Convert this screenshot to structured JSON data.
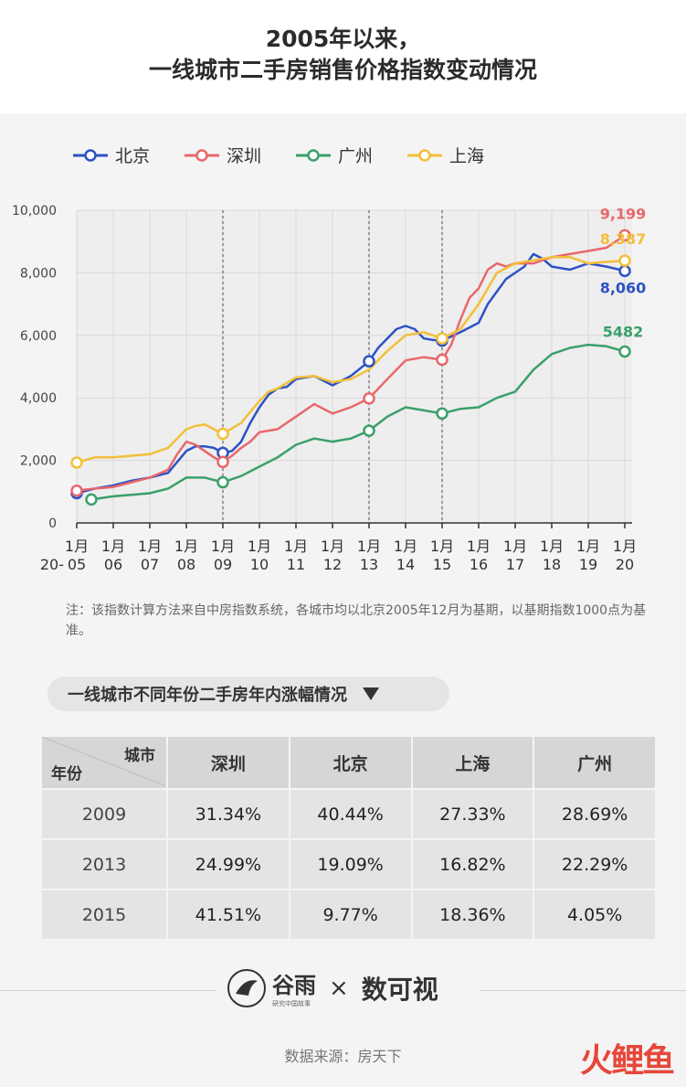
{
  "title_line1": "2005年以来，",
  "title_line2": "一线城市二手房销售价格指数变动情况",
  "legend": [
    {
      "name": "北京",
      "color": "#2d52c4"
    },
    {
      "name": "深圳",
      "color": "#e9676a"
    },
    {
      "name": "广州",
      "color": "#3aa06a"
    },
    {
      "name": "上海",
      "color": "#f3bf3a"
    }
  ],
  "note": "注：该指数计算方法来自中房指数系统，各城市均以北京2005年12月为基期，以基期指数1000点为基准。",
  "section_title": "一线城市不同年份二手房年内涨幅情况",
  "table": {
    "corner_top": "城市",
    "corner_bottom": "年份",
    "headers": [
      "深圳",
      "北京",
      "上海",
      "广州"
    ],
    "rows": [
      {
        "year": "2009",
        "values": [
          "31.34%",
          "40.44%",
          "27.33%",
          "28.69%"
        ]
      },
      {
        "year": "2013",
        "values": [
          "24.99%",
          "19.09%",
          "16.82%",
          "22.29%"
        ]
      },
      {
        "year": "2015",
        "values": [
          "41.51%",
          "9.77%",
          "18.36%",
          "4.05%"
        ]
      }
    ]
  },
  "logo_brand": "谷雨",
  "logo_brand_sub": "研究中国故事",
  "logo_times": "×",
  "logo_partner": "数可视",
  "source": "数据来源：房天下",
  "corner_logo": "火鲤鱼",
  "chart_data": {
    "type": "line",
    "ylim": [
      0,
      10000
    ],
    "yticks": [
      "0",
      "2,000",
      "4,000",
      "6,000",
      "8,000",
      "10,000"
    ],
    "ytick_values": [
      0,
      2000,
      4000,
      6000,
      8000,
      10000
    ],
    "xlim": [
      2005,
      2020.2
    ],
    "x_prefix": "20-",
    "xticks": [
      {
        "x": 2005,
        "top": "1月",
        "bottom": "05"
      },
      {
        "x": 2006,
        "top": "1月",
        "bottom": "06"
      },
      {
        "x": 2007,
        "top": "1月",
        "bottom": "07"
      },
      {
        "x": 2008,
        "top": "1月",
        "bottom": "08"
      },
      {
        "x": 2009,
        "top": "1月",
        "bottom": "09"
      },
      {
        "x": 2010,
        "top": "1月",
        "bottom": "10"
      },
      {
        "x": 2011,
        "top": "1月",
        "bottom": "11"
      },
      {
        "x": 2012,
        "top": "1月",
        "bottom": "12"
      },
      {
        "x": 2013,
        "top": "1月",
        "bottom": "13"
      },
      {
        "x": 2014,
        "top": "1月",
        "bottom": "14"
      },
      {
        "x": 2015,
        "top": "1月",
        "bottom": "15"
      },
      {
        "x": 2016,
        "top": "1月",
        "bottom": "16"
      },
      {
        "x": 2017,
        "top": "1月",
        "bottom": "17"
      },
      {
        "x": 2018,
        "top": "1月",
        "bottom": "18"
      },
      {
        "x": 2019,
        "top": "1月",
        "bottom": "19"
      },
      {
        "x": 2020,
        "top": "1月",
        "bottom": "20"
      }
    ],
    "vlines": [
      2009,
      2013,
      2015
    ],
    "grid": true,
    "series": [
      {
        "name": "北京",
        "color": "#2d52c4",
        "x": [
          2005,
          2005.5,
          2006,
          2006.5,
          2007,
          2007.5,
          2008,
          2008.25,
          2008.5,
          2008.75,
          2009,
          2009.25,
          2009.5,
          2009.75,
          2010,
          2010.25,
          2010.5,
          2010.75,
          2011,
          2011.5,
          2012,
          2012.5,
          2013,
          2013.25,
          2013.5,
          2013.75,
          2014,
          2014.25,
          2014.5,
          2014.75,
          2015,
          2015.5,
          2016,
          2016.25,
          2016.5,
          2016.75,
          2017,
          2017.25,
          2017.5,
          2017.75,
          2018,
          2018.5,
          2019,
          2019.5,
          2020
        ],
        "y": [
          950,
          1100,
          1200,
          1350,
          1450,
          1600,
          2300,
          2450,
          2450,
          2400,
          2240,
          2300,
          2600,
          3200,
          3700,
          4100,
          4300,
          4350,
          4600,
          4700,
          4400,
          4700,
          5170,
          5600,
          5900,
          6200,
          6300,
          6200,
          5900,
          5850,
          5830,
          6100,
          6400,
          7000,
          7400,
          7800,
          8000,
          8200,
          8600,
          8450,
          8200,
          8100,
          8300,
          8200,
          8060
        ]
      },
      {
        "name": "深圳",
        "color": "#e9676a",
        "x": [
          2005,
          2005.5,
          2006,
          2006.5,
          2007,
          2007.5,
          2007.75,
          2008,
          2008.25,
          2008.5,
          2008.75,
          2009,
          2009.25,
          2009.5,
          2009.75,
          2010,
          2010.5,
          2011,
          2011.5,
          2012,
          2012.5,
          2013,
          2013.5,
          2014,
          2014.5,
          2015,
          2015.25,
          2015.5,
          2015.75,
          2016,
          2016.25,
          2016.5,
          2016.75,
          2017,
          2017.5,
          2018,
          2018.5,
          2019,
          2019.5,
          2020
        ],
        "y": [
          1030,
          1100,
          1150,
          1300,
          1450,
          1700,
          2200,
          2600,
          2500,
          2300,
          2100,
          1950,
          2150,
          2400,
          2600,
          2900,
          3000,
          3400,
          3800,
          3500,
          3700,
          3980,
          4600,
          5200,
          5300,
          5220,
          5700,
          6500,
          7200,
          7500,
          8100,
          8300,
          8200,
          8300,
          8300,
          8500,
          8600,
          8700,
          8800,
          9199
        ]
      },
      {
        "name": "广州",
        "color": "#3aa06a",
        "x": [
          2005.4,
          2006,
          2006.5,
          2007,
          2007.5,
          2008,
          2008.5,
          2009,
          2009.5,
          2010,
          2010.5,
          2011,
          2011.5,
          2012,
          2012.5,
          2013,
          2013.5,
          2014,
          2014.5,
          2015,
          2015.5,
          2016,
          2016.5,
          2017,
          2017.5,
          2018,
          2018.5,
          2019,
          2019.5,
          2020
        ],
        "y": [
          750,
          850,
          900,
          950,
          1100,
          1450,
          1450,
          1300,
          1500,
          1800,
          2100,
          2500,
          2700,
          2600,
          2700,
          2950,
          3400,
          3700,
          3600,
          3500,
          3650,
          3700,
          4000,
          4200,
          4900,
          5400,
          5600,
          5700,
          5650,
          5482
        ]
      },
      {
        "name": "上海",
        "color": "#f3bf3a",
        "x": [
          2005,
          2005.5,
          2006,
          2006.5,
          2007,
          2007.5,
          2008,
          2008.25,
          2008.5,
          2008.75,
          2009,
          2009.5,
          2010,
          2010.25,
          2010.5,
          2011,
          2011.5,
          2012,
          2012.5,
          2013,
          2013.5,
          2014,
          2014.5,
          2015,
          2015.5,
          2016,
          2016.5,
          2017,
          2017.5,
          2018,
          2018.5,
          2019,
          2019.5,
          2020
        ],
        "y": [
          1930,
          2100,
          2100,
          2150,
          2200,
          2400,
          3000,
          3100,
          3150,
          3000,
          2850,
          3200,
          3900,
          4200,
          4300,
          4650,
          4700,
          4500,
          4600,
          4900,
          5500,
          6000,
          6100,
          5900,
          6200,
          7000,
          8000,
          8300,
          8400,
          8500,
          8500,
          8300,
          8350,
          8387
        ]
      }
    ],
    "markers": [
      {
        "series": "北京",
        "x": [
          2005,
          2009,
          2013,
          2015,
          2020
        ],
        "y": [
          950,
          2240,
          5170,
          5830,
          8060
        ]
      },
      {
        "series": "深圳",
        "x": [
          2005,
          2009,
          2013,
          2015,
          2020
        ],
        "y": [
          1030,
          1950,
          3980,
          5220,
          9199
        ]
      },
      {
        "series": "广州",
        "x": [
          2005.4,
          2009,
          2013,
          2015,
          2020
        ],
        "y": [
          750,
          1300,
          2950,
          3500,
          5482
        ]
      },
      {
        "series": "上海",
        "x": [
          2005,
          2009,
          2015,
          2020
        ],
        "y": [
          1930,
          2850,
          5900,
          8387
        ]
      }
    ],
    "end_labels": [
      {
        "series": "深圳",
        "text": "9,199",
        "color": "#e9676a"
      },
      {
        "series": "上海",
        "text": "8,387",
        "color": "#f3bf3a"
      },
      {
        "series": "北京",
        "text": "8,060",
        "color": "#2d52c4"
      },
      {
        "series": "广州",
        "text": "5482",
        "color": "#3aa06a"
      }
    ]
  }
}
